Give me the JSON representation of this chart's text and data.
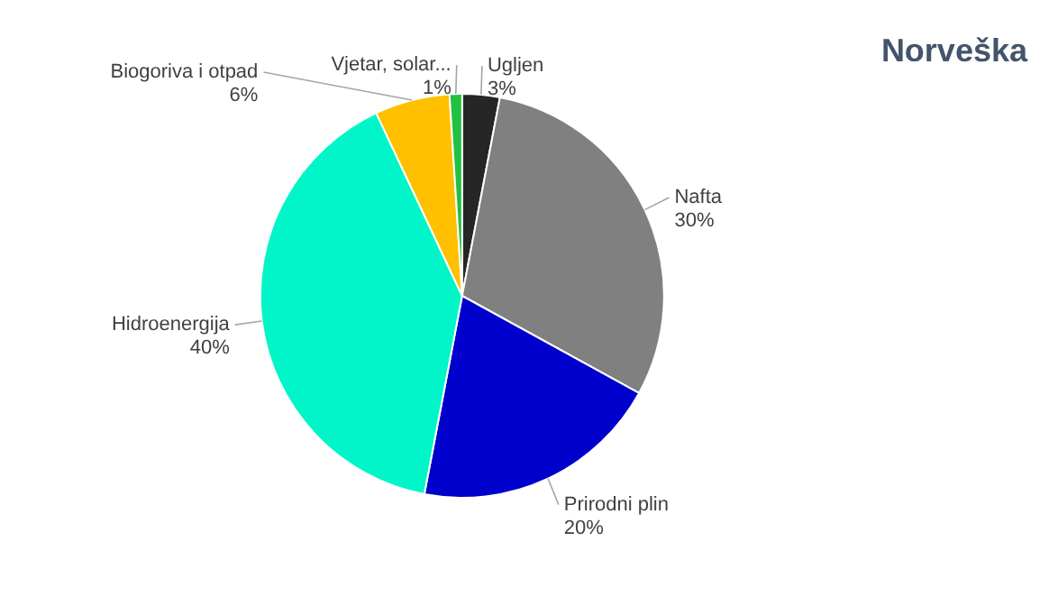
{
  "chart_data": {
    "type": "pie",
    "title": "Norveška",
    "categories": [
      "Ugljen",
      "Nafta",
      "Prirodni plin",
      "Hidroenergija",
      "Biogoriva i otpad",
      "Vjetar, solar..."
    ],
    "values": [
      3,
      30,
      20,
      40,
      6,
      1
    ],
    "value_labels": [
      "3%",
      "30%",
      "20%",
      "40%",
      "6%",
      "1%"
    ],
    "colors": [
      "#262626",
      "#808080",
      "#0000cc",
      "#00f5c8",
      "#ffc000",
      "#22c040"
    ],
    "legend": false
  }
}
